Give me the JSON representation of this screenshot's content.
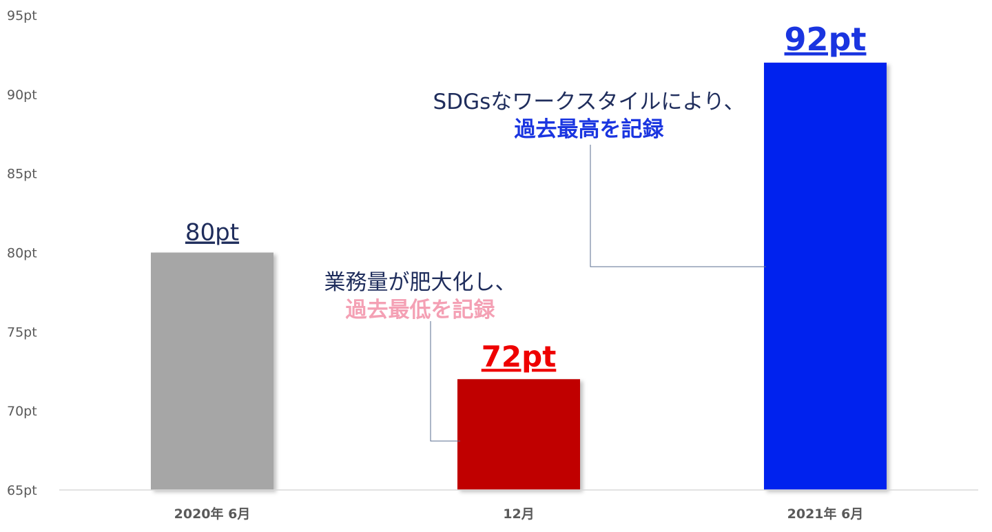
{
  "chart_data": {
    "type": "bar",
    "categories": [
      "2020年 6月",
      "12月",
      "2021年 6月"
    ],
    "values": [
      80,
      72,
      92
    ],
    "value_labels": [
      "80pt",
      "72pt",
      "92pt"
    ],
    "bar_colors": [
      "#a6a6a6",
      "#c00000",
      "#0022ee"
    ],
    "value_label_colors": [
      "#1f2d5c",
      "#ee0000",
      "#1a35e0"
    ],
    "ylim": [
      65,
      95
    ],
    "yticks": [
      65,
      70,
      75,
      80,
      85,
      90,
      95
    ],
    "ytick_labels": [
      "65pt",
      "70pt",
      "75pt",
      "80pt",
      "85pt",
      "90pt",
      "95pt"
    ],
    "grid": false,
    "legend": "none",
    "annotations": [
      {
        "target": "2021年 6月",
        "line1": "SDGsなワークスタイルにより、",
        "line2": "過去最高を記録",
        "line2_color": "#1a35e0"
      },
      {
        "target": "12月",
        "line1": "業務量が肥大化し、",
        "line2": "過去最低を記録",
        "line2_color": "#f4a0b4"
      }
    ]
  }
}
